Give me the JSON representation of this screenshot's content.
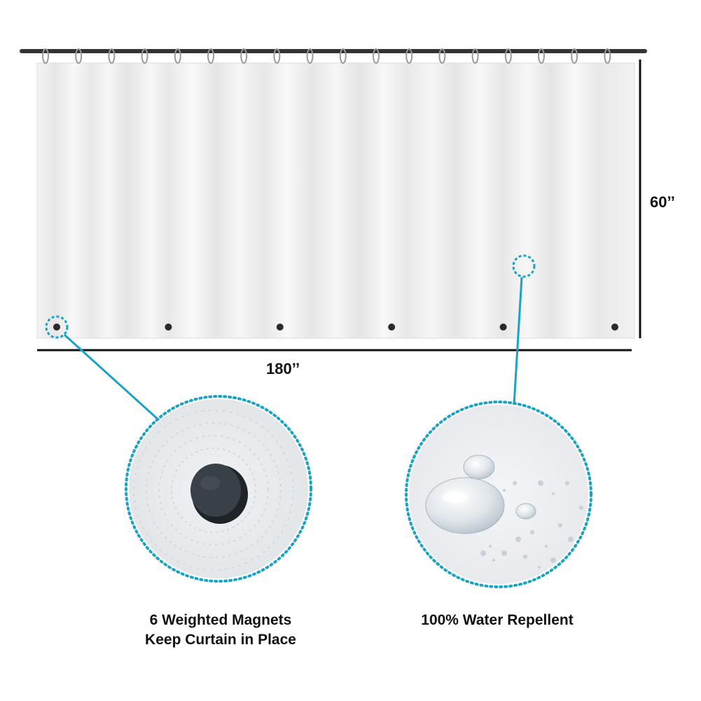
{
  "product": {
    "dimensions": {
      "width_label": "180’’",
      "height_label": "60’’"
    },
    "magnet_count": 6,
    "features": [
      {
        "name": "magnets",
        "lines": [
          "6 Weighted Magnets",
          "Keep Curtain in Place"
        ]
      },
      {
        "name": "water",
        "lines": [
          "100% Water Repellent"
        ]
      }
    ]
  },
  "colors": {
    "accent": "#1aa3c4",
    "rod": "#333333",
    "curtain": "#eeeeee",
    "magnet": "#2a2a2a"
  }
}
